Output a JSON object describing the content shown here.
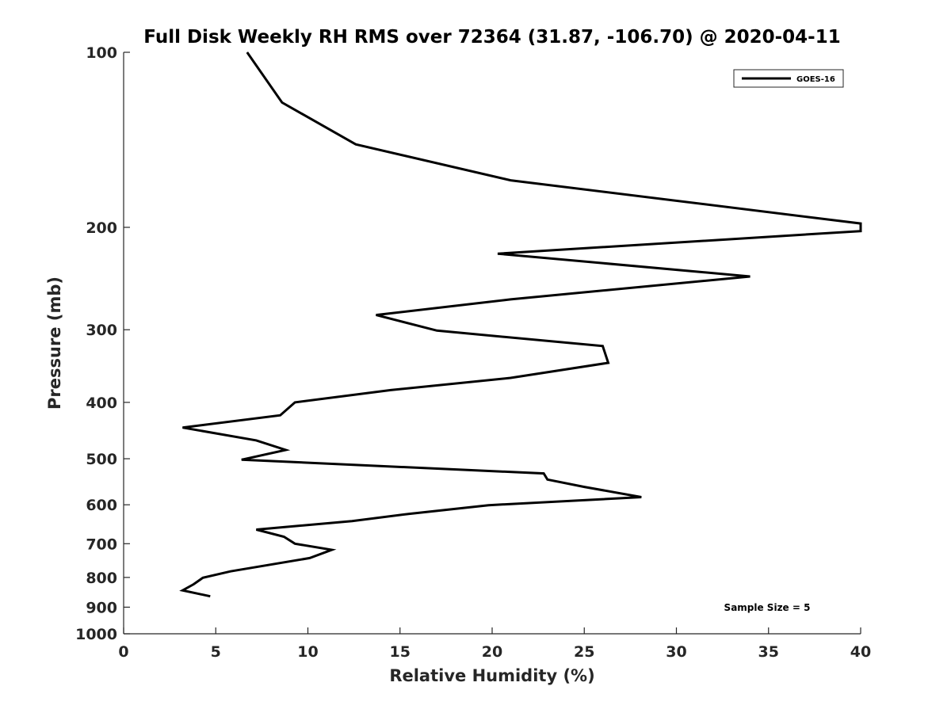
{
  "chart_data": {
    "type": "line",
    "title": "Full Disk Weekly RH RMS over 72364 (31.87, -106.70) @ 2020-04-11",
    "xlabel": "Relative Humidity (%)",
    "ylabel": "Pressure (mb)",
    "xlim": [
      0,
      40
    ],
    "ylim": [
      100,
      1000
    ],
    "y_scale": "log",
    "y_reversed": true,
    "grid": false,
    "legend_position": "top-right",
    "x_ticks": [
      0,
      5,
      10,
      15,
      20,
      25,
      30,
      35,
      40
    ],
    "y_ticks": [
      100,
      200,
      300,
      400,
      500,
      600,
      700,
      800,
      900,
      1000
    ],
    "series": [
      {
        "name": "GOES-16",
        "color": "#000000",
        "points": [
          {
            "x": 6.7,
            "p": 100
          },
          {
            "x": 8.6,
            "p": 122
          },
          {
            "x": 12.6,
            "p": 144
          },
          {
            "x": 21.0,
            "p": 166
          },
          {
            "x": 40.0,
            "p": 197
          },
          {
            "x": 40.0,
            "p": 203
          },
          {
            "x": 20.3,
            "p": 222
          },
          {
            "x": 34.0,
            "p": 243
          },
          {
            "x": 21.0,
            "p": 266
          },
          {
            "x": 13.7,
            "p": 283
          },
          {
            "x": 17.0,
            "p": 301
          },
          {
            "x": 26.0,
            "p": 320
          },
          {
            "x": 26.3,
            "p": 342
          },
          {
            "x": 21.0,
            "p": 363
          },
          {
            "x": 14.5,
            "p": 381
          },
          {
            "x": 9.3,
            "p": 400
          },
          {
            "x": 8.5,
            "p": 421
          },
          {
            "x": 3.2,
            "p": 442
          },
          {
            "x": 7.2,
            "p": 465
          },
          {
            "x": 8.8,
            "p": 483
          },
          {
            "x": 6.4,
            "p": 502
          },
          {
            "x": 22.8,
            "p": 530
          },
          {
            "x": 23.0,
            "p": 543
          },
          {
            "x": 25.0,
            "p": 559
          },
          {
            "x": 28.1,
            "p": 582
          },
          {
            "x": 19.8,
            "p": 601
          },
          {
            "x": 15.5,
            "p": 622
          },
          {
            "x": 12.4,
            "p": 640
          },
          {
            "x": 7.2,
            "p": 662
          },
          {
            "x": 8.7,
            "p": 681
          },
          {
            "x": 9.3,
            "p": 700
          },
          {
            "x": 11.3,
            "p": 717
          },
          {
            "x": 10.1,
            "p": 741
          },
          {
            "x": 5.8,
            "p": 781
          },
          {
            "x": 4.3,
            "p": 801
          },
          {
            "x": 3.8,
            "p": 822
          },
          {
            "x": 3.2,
            "p": 842
          },
          {
            "x": 4.7,
            "p": 862
          }
        ]
      }
    ],
    "annotation": "Sample Size = 5"
  }
}
